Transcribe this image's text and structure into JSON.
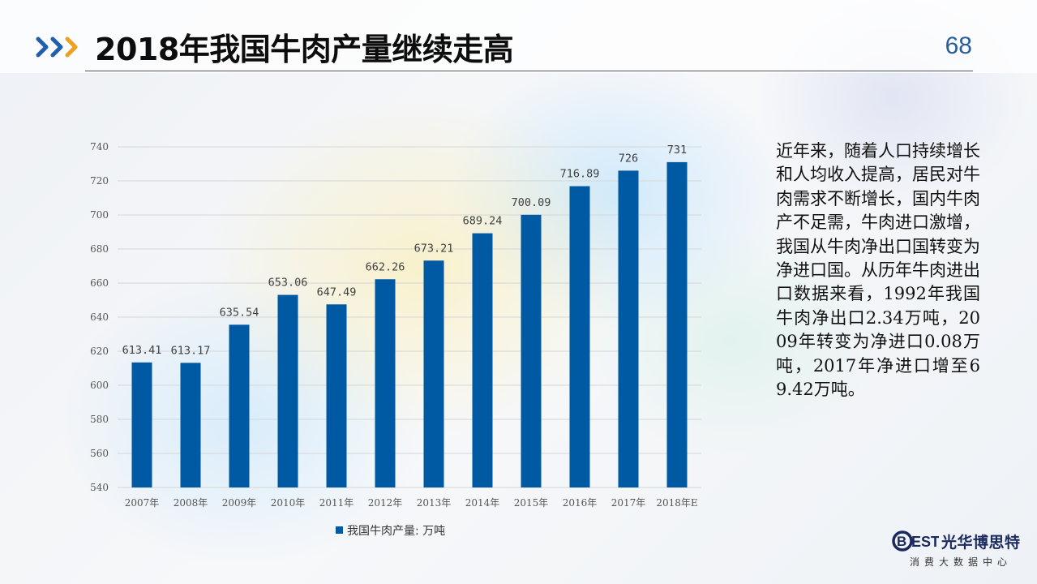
{
  "header": {
    "title": "2018年我国牛肉产量继续走高",
    "page_number": "68"
  },
  "colors": {
    "bar": "#005aa3",
    "chevron_blue": "#1f5fae",
    "chevron_orange": "#f0a020",
    "page_number": "#2b5d9a"
  },
  "chart_data": {
    "type": "bar",
    "categories": [
      "2007年",
      "2008年",
      "2009年",
      "2010年",
      "2011年",
      "2012年",
      "2013年",
      "2014年",
      "2015年",
      "2016年",
      "2017年",
      "2018年E"
    ],
    "series": [
      {
        "name": "我国牛肉产量: 万吨",
        "values": [
          613.41,
          613.17,
          635.54,
          653.06,
          647.49,
          662.26,
          673.21,
          689.24,
          700.09,
          716.89,
          726,
          731
        ]
      }
    ],
    "data_labels": [
      "613.41",
      "613.17",
      "635.54",
      "653.06",
      "647.49",
      "662.26",
      "673.21",
      "689.24",
      "700.09",
      "716.89",
      "726",
      "731"
    ],
    "y_ticks": [
      "540",
      "560",
      "580",
      "600",
      "620",
      "640",
      "660",
      "680",
      "700",
      "720",
      "740"
    ],
    "ylim": [
      540,
      740
    ],
    "grid": true,
    "legend_position": "bottom"
  },
  "body_text": "近年来，随着人口持续增长和人均收入提高，居民对牛肉需求不断增长，国内牛肉产不足需，牛肉进口激增，我国从牛肉净出口国转变为净进口国。从历年牛肉进出口数据来看，1992年我国牛肉净出口2.34万吨，2009年转变为净进口0.08万吨，2017年净进口增至69.42万吨。",
  "logo": {
    "mark": "BEST",
    "name": "光华博思特",
    "subtitle": "消费大数据中心"
  }
}
